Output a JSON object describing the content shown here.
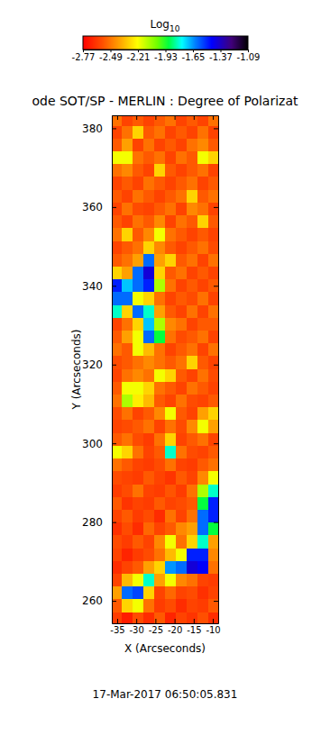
{
  "chart_data": {
    "type": "heatmap",
    "title": "ode SOT/SP - MERLIN : Degree of Polarizat",
    "xlabel": "X (Arcseconds)",
    "ylabel": "Y (Arcseconds)",
    "annotation": "17-Mar-2017 06:50:05.831",
    "xlim": [
      -36.4,
      -8.6
    ],
    "xticks": [
      -35,
      -30,
      -25,
      -20,
      -15,
      -10
    ],
    "ylim": [
      254.3,
      383.3
    ],
    "yticks": [
      260,
      280,
      300,
      320,
      340,
      360,
      380
    ],
    "colorbar": {
      "title": "Log10",
      "range": [
        -2.77,
        -1.09
      ],
      "ticks": [
        -2.77,
        -2.49,
        -2.21,
        -1.93,
        -1.65,
        -1.37,
        -1.09
      ]
    },
    "x_edges": [
      -36.5,
      -33.7,
      -30.9,
      -28.1,
      -25.3,
      -22.5,
      -19.7,
      -16.9,
      -14.1,
      -11.3,
      -8.5
    ],
    "y_edges": [
      254,
      257.25,
      260.5,
      263.75,
      267,
      270.25,
      273.5,
      276.75,
      280,
      283.25,
      286.5,
      289.75,
      293,
      296.25,
      299.5,
      302.75,
      306,
      309.25,
      312.5,
      315.75,
      319,
      322.25,
      325.5,
      328.75,
      332,
      335.25,
      338.5,
      341.75,
      345,
      348.25,
      351.5,
      354.75,
      358,
      361.25,
      364.5,
      367.75,
      371,
      374.25,
      377.5,
      380.75,
      384
    ],
    "z": [
      [
        -2.62,
        -2.7,
        -2.58,
        -2.66,
        -2.55,
        -2.68,
        -2.6,
        -2.64,
        -2.57,
        -2.66
      ],
      [
        -2.55,
        -2.3,
        -2.2,
        -2.5,
        -2.62,
        -2.58,
        -2.66,
        -2.6,
        -2.62,
        -2.55
      ],
      [
        -2.4,
        -1.6,
        -1.55,
        -2.3,
        -2.6,
        -2.52,
        -2.6,
        -2.58,
        -2.65,
        -2.6
      ],
      [
        -2.6,
        -2.35,
        -2.2,
        -1.8,
        -2.4,
        -2.2,
        -2.45,
        -2.5,
        -2.6,
        -2.62
      ],
      [
        -2.66,
        -2.6,
        -2.55,
        -2.4,
        -2.3,
        -1.65,
        -1.6,
        -1.4,
        -1.45,
        -2.5
      ],
      [
        -2.6,
        -2.68,
        -2.62,
        -2.58,
        -2.5,
        -2.35,
        -2.2,
        -1.5,
        -1.5,
        -2.45
      ],
      [
        -2.58,
        -2.62,
        -2.55,
        -2.6,
        -2.45,
        -2.2,
        -2.5,
        -2.3,
        -1.8,
        -2.4
      ],
      [
        -2.65,
        -2.58,
        -2.66,
        -2.52,
        -2.6,
        -2.55,
        -2.45,
        -2.4,
        -1.6,
        -1.9
      ],
      [
        -2.6,
        -2.55,
        -2.62,
        -2.58,
        -2.66,
        -2.5,
        -2.6,
        -2.5,
        -1.6,
        -1.5
      ],
      [
        -2.55,
        -2.64,
        -2.6,
        -2.62,
        -2.55,
        -2.6,
        -2.58,
        -2.55,
        -1.9,
        -1.5
      ],
      [
        -2.62,
        -2.58,
        -2.5,
        -2.6,
        -2.62,
        -2.56,
        -2.62,
        -2.5,
        -2.1,
        -1.8
      ],
      [
        -2.58,
        -2.6,
        -2.62,
        -2.55,
        -2.6,
        -2.64,
        -2.55,
        -2.6,
        -2.45,
        -2.2
      ],
      [
        -2.5,
        -2.55,
        -2.6,
        -2.62,
        -2.58,
        -2.5,
        -2.6,
        -2.62,
        -2.55,
        -2.5
      ],
      [
        -2.2,
        -2.3,
        -2.5,
        -2.6,
        -2.55,
        -1.8,
        -2.5,
        -2.58,
        -2.6,
        -2.55
      ],
      [
        -2.55,
        -2.5,
        -2.58,
        -2.62,
        -2.5,
        -2.3,
        -2.6,
        -2.55,
        -2.5,
        -2.6
      ],
      [
        -2.6,
        -2.58,
        -2.55,
        -2.5,
        -2.6,
        -2.5,
        -2.58,
        -2.45,
        -2.2,
        -2.4
      ],
      [
        -2.58,
        -2.5,
        -2.6,
        -2.55,
        -2.45,
        -2.2,
        -2.55,
        -2.6,
        -2.4,
        -2.3
      ],
      [
        -2.5,
        -2.1,
        -2.25,
        -2.35,
        -2.55,
        -2.6,
        -2.5,
        -2.58,
        -2.6,
        -2.55
      ],
      [
        -2.55,
        -2.2,
        -2.2,
        -2.3,
        -2.5,
        -2.55,
        -2.6,
        -2.5,
        -2.55,
        -2.6
      ],
      [
        -2.6,
        -2.5,
        -2.45,
        -2.5,
        -2.2,
        -2.3,
        -2.55,
        -2.6,
        -2.5,
        -2.58
      ],
      [
        -2.58,
        -2.55,
        -2.5,
        -2.45,
        -2.5,
        -2.55,
        -2.5,
        -2.3,
        -2.55,
        -2.6
      ],
      [
        -2.5,
        -2.55,
        -2.2,
        -2.35,
        -2.5,
        -2.6,
        -2.55,
        -2.5,
        -2.6,
        -2.5
      ],
      [
        -2.55,
        -2.4,
        -2.2,
        -1.6,
        -1.9,
        -2.5,
        -2.58,
        -2.55,
        -2.5,
        -2.6
      ],
      [
        -2.6,
        -2.5,
        -2.3,
        -1.7,
        -2.1,
        -2.45,
        -2.5,
        -2.6,
        -2.55,
        -2.55
      ],
      [
        -1.8,
        -2.3,
        -1.6,
        -1.8,
        -2.4,
        -2.55,
        -2.6,
        -2.5,
        -2.6,
        -2.5
      ],
      [
        -1.6,
        -1.6,
        -2.2,
        -2.3,
        -2.5,
        -2.6,
        -2.55,
        -2.58,
        -2.5,
        -2.6
      ],
      [
        -1.5,
        -1.7,
        -1.6,
        -1.5,
        -2.1,
        -2.5,
        -2.6,
        -2.55,
        -2.6,
        -2.55
      ],
      [
        -2.3,
        -2.4,
        -1.6,
        -1.4,
        -2.3,
        -2.55,
        -2.5,
        -2.6,
        -2.55,
        -2.6
      ],
      [
        -2.55,
        -2.5,
        -2.4,
        -1.6,
        -2.4,
        -2.3,
        -2.55,
        -2.5,
        -2.6,
        -2.5
      ],
      [
        -2.6,
        -2.55,
        -2.5,
        -2.3,
        -2.45,
        -2.55,
        -2.6,
        -2.55,
        -2.5,
        -2.58
      ],
      [
        -2.5,
        -2.3,
        -2.55,
        -2.45,
        -2.2,
        -2.5,
        -2.55,
        -2.6,
        -2.55,
        -2.6
      ],
      [
        -2.55,
        -2.6,
        -2.5,
        -2.55,
        -2.45,
        -2.6,
        -2.5,
        -2.55,
        -2.3,
        -2.55
      ],
      [
        -2.6,
        -2.5,
        -2.58,
        -2.6,
        -2.55,
        -2.5,
        -2.6,
        -2.45,
        -2.5,
        -2.6
      ],
      [
        -2.55,
        -2.6,
        -2.5,
        -2.55,
        -2.6,
        -2.55,
        -2.5,
        -2.3,
        -2.55,
        -2.5
      ],
      [
        -2.6,
        -2.55,
        -2.6,
        -2.5,
        -2.55,
        -2.6,
        -2.55,
        -2.5,
        -2.6,
        -2.55
      ],
      [
        -2.5,
        -2.45,
        -2.55,
        -2.6,
        -2.3,
        -2.55,
        -2.6,
        -2.55,
        -2.5,
        -2.6
      ],
      [
        -2.2,
        -2.2,
        -2.5,
        -2.55,
        -2.5,
        -2.6,
        -2.5,
        -2.55,
        -2.2,
        -2.3
      ],
      [
        -2.55,
        -2.4,
        -2.6,
        -2.5,
        -2.6,
        -2.55,
        -2.6,
        -2.5,
        -2.45,
        -2.55
      ],
      [
        -2.6,
        -2.5,
        -2.3,
        -2.55,
        -2.5,
        -2.6,
        -2.55,
        -2.6,
        -2.5,
        -2.6
      ],
      [
        -2.5,
        -2.6,
        -2.55,
        -2.6,
        -2.55,
        -2.5,
        -2.6,
        -2.55,
        -2.6,
        -2.5
      ]
    ]
  }
}
